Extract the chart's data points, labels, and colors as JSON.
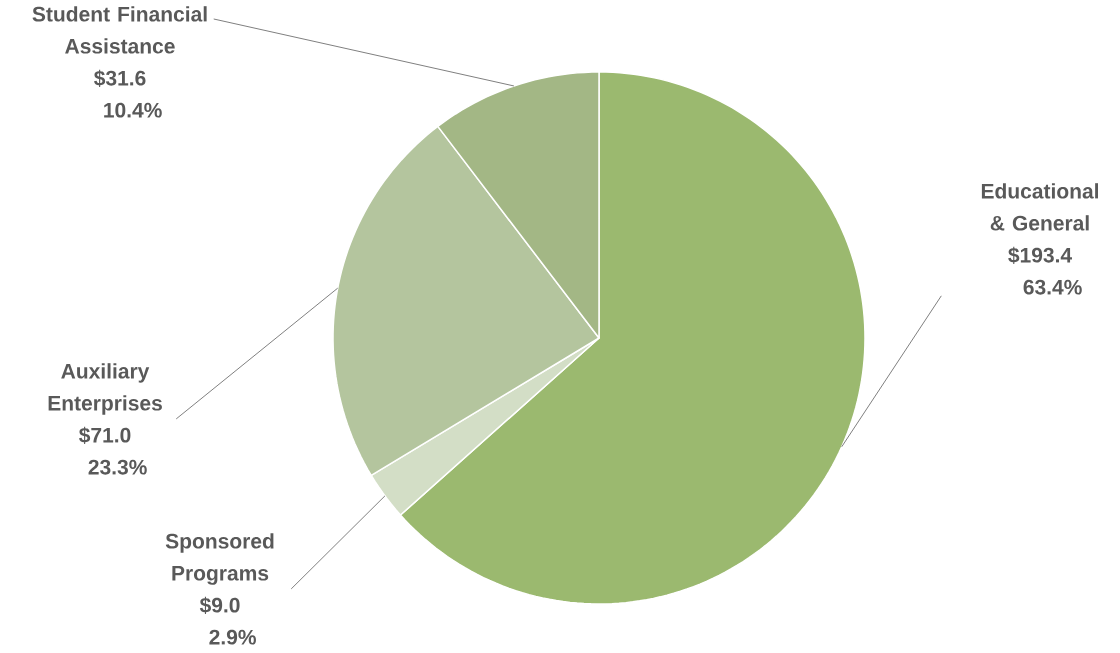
{
  "chart_data": {
    "type": "pie",
    "categories": [
      "Educational & General",
      "Sponsored Programs",
      "Auxiliary Enterprises",
      "Student Financial Assistance"
    ],
    "values": [
      193.4,
      9.0,
      71.0,
      31.6
    ],
    "colors": [
      "#9bb96f",
      "#d3dec6",
      "#b4c59e",
      "#a3b785"
    ],
    "value_labels": [
      "$193.4",
      "$9.0",
      "$71.0",
      "$31.6"
    ],
    "annotations": [
      "63.4%",
      "2.9%",
      "23.3%",
      "10.4%"
    ]
  }
}
